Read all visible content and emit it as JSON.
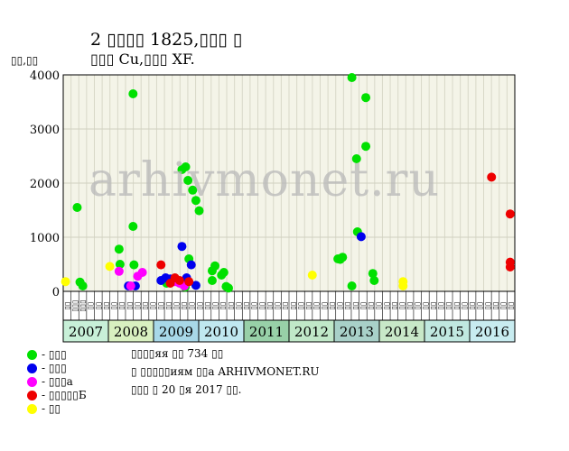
{
  "header": {
    "title_line1": "2 ▯▯▯▯ 1825,▯▯▯ ▯",
    "title_line2": "▯▯▯ Cu,▯▯▯ XF."
  },
  "watermark": "arhivmonet.ru",
  "chart_data": {
    "type": "scatter",
    "ylabel": "▯▯,▯▯",
    "ylim": [
      0,
      4000
    ],
    "yticks": [
      0,
      1000,
      2000,
      3000,
      4000
    ],
    "xlim": [
      2007.0,
      2016.7
    ],
    "grid": true,
    "month_ticks": [
      "▯▯",
      "▯▯▯",
      "▯▯▯",
      "▯▯",
      "▯▯",
      "▯▯",
      "▯▯",
      "▯▯",
      "▯▯",
      "▯▯",
      "▯▯",
      "▯▯",
      "▯▯",
      "▯▯",
      "▯▯",
      "▯▯",
      "▯▯",
      "▯▯",
      "▯▯",
      "▯▯",
      "▯▯",
      "▯▯",
      "▯▯",
      "▯▯",
      "▯▯",
      "▯▯",
      "▯▯",
      "▯▯",
      "▯▯",
      "▯▯",
      "▯▯",
      "▯▯",
      "▯▯",
      "▯▯",
      "▯▯",
      "▯▯",
      "▯▯",
      "▯▯",
      "▯▯",
      "▯▯",
      "▯▯",
      "▯▯",
      "▯▯",
      "▯▯",
      "▯▯",
      "▯▯",
      "▯▯",
      "▯▯",
      "▯▯",
      "▯▯",
      "▯▯",
      "▯▯",
      "▯▯",
      "▯▯",
      "▯▯",
      "▯▯",
      "▯▯",
      "▯▯"
    ],
    "years": [
      {
        "label": "2007",
        "color": "#c8f0d8"
      },
      {
        "label": "2008",
        "color": "#d8f0c0"
      },
      {
        "label": "2009",
        "color": "#a8d8e8"
      },
      {
        "label": "2010",
        "color": "#c0e8f0"
      },
      {
        "label": "2011",
        "color": "#98d0a8"
      },
      {
        "label": "2012",
        "color": "#c0e8c8"
      },
      {
        "label": "2013",
        "color": "#a8d0c8"
      },
      {
        "label": "2014",
        "color": "#c8e8c8"
      },
      {
        "label": "2015",
        "color": "#c0e8e0"
      },
      {
        "label": "2016",
        "color": "#c8ecf0"
      }
    ],
    "series": [
      {
        "name": "- ▯▯▯",
        "color": "#00e000",
        "points": [
          [
            2007.3,
            1550
          ],
          [
            2007.36,
            170
          ],
          [
            2007.42,
            100
          ],
          [
            2008.2,
            780
          ],
          [
            2008.22,
            500
          ],
          [
            2008.5,
            3650
          ],
          [
            2008.5,
            1200
          ],
          [
            2008.52,
            490
          ],
          [
            2009.22,
            150
          ],
          [
            2009.55,
            2250
          ],
          [
            2009.63,
            2300
          ],
          [
            2009.68,
            2050
          ],
          [
            2009.78,
            1870
          ],
          [
            2009.85,
            1680
          ],
          [
            2009.92,
            1490
          ],
          [
            2009.7,
            600
          ],
          [
            2009.62,
            80
          ],
          [
            2010.2,
            380
          ],
          [
            2010.26,
            470
          ],
          [
            2010.4,
            300
          ],
          [
            2010.45,
            350
          ],
          [
            2010.5,
            90
          ],
          [
            2010.55,
            60
          ],
          [
            2010.2,
            200
          ],
          [
            2012.9,
            600
          ],
          [
            2012.95,
            590
          ],
          [
            2013.0,
            630
          ],
          [
            2013.2,
            3950
          ],
          [
            2013.3,
            2450
          ],
          [
            2013.32,
            1100
          ],
          [
            2013.5,
            3580
          ],
          [
            2013.5,
            2680
          ],
          [
            2013.65,
            330
          ],
          [
            2013.68,
            200
          ],
          [
            2013.2,
            100
          ]
        ]
      },
      {
        "name": "- ▯▯▯",
        "color": "#0000ee",
        "points": [
          [
            2008.4,
            100
          ],
          [
            2008.55,
            100
          ],
          [
            2009.1,
            200
          ],
          [
            2009.2,
            250
          ],
          [
            2009.3,
            230
          ],
          [
            2009.55,
            830
          ],
          [
            2009.65,
            250
          ],
          [
            2009.75,
            490
          ],
          [
            2009.85,
            110
          ],
          [
            2013.4,
            1010
          ]
        ]
      },
      {
        "name": "- ▯▯▯а",
        "color": "#ff00ff",
        "points": [
          [
            2008.2,
            370
          ],
          [
            2008.45,
            100
          ],
          [
            2008.6,
            280
          ],
          [
            2008.7,
            350
          ],
          [
            2009.4,
            180
          ],
          [
            2009.5,
            150
          ],
          [
            2009.6,
            100
          ]
        ]
      },
      {
        "name": "- ▯▯▯▯▯Б",
        "color": "#ee0000",
        "points": [
          [
            2009.1,
            490
          ],
          [
            2009.3,
            150
          ],
          [
            2009.4,
            250
          ],
          [
            2009.5,
            200
          ],
          [
            2009.7,
            180
          ],
          [
            2016.2,
            2110
          ],
          [
            2016.6,
            1430
          ],
          [
            2016.6,
            540
          ],
          [
            2016.6,
            450
          ]
        ]
      },
      {
        "name": "- ▯▯",
        "color": "#ffff00",
        "points": [
          [
            2007.05,
            180
          ],
          [
            2008.0,
            460
          ],
          [
            2012.35,
            300
          ],
          [
            2014.3,
            180
          ],
          [
            2014.3,
            100
          ]
        ]
      }
    ]
  },
  "info": {
    "line1": "▯▯▯▯яя ▯▯ 734 ▯▯",
    "line2": "▯ ▯▯▯▯▯иям ▯▯а ARHIVMONET.RU",
    "line3": "▯▯▯ ▯ 20 ▯я 2017 ▯▯."
  }
}
